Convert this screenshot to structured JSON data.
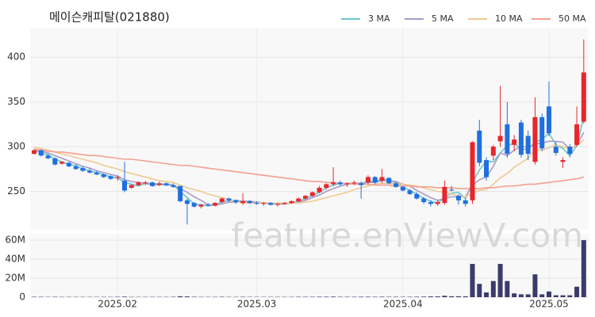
{
  "chart_data": [
    {
      "type": "candlestick",
      "title": "메이슨캐피탈(021880)",
      "watermark": "feature.enViewV.com",
      "categories": [
        null,
        null,
        null,
        null,
        null,
        null,
        null,
        null,
        null,
        null,
        null,
        null,
        "2025.02",
        null,
        null,
        null,
        null,
        null,
        null,
        null,
        null,
        null,
        null,
        null,
        null,
        null,
        null,
        null,
        null,
        null,
        null,
        null,
        "2025.03",
        null,
        null,
        null,
        null,
        null,
        null,
        null,
        null,
        null,
        null,
        null,
        null,
        null,
        null,
        null,
        null,
        null,
        null,
        null,
        null,
        "2025.04",
        null,
        null,
        null,
        null,
        null,
        null,
        null,
        null,
        null,
        null,
        null,
        null,
        null,
        null,
        null,
        null,
        null,
        null,
        null,
        null,
        "2025.05",
        null,
        null,
        null,
        null,
        null
      ],
      "open": [
        292,
        296,
        290,
        287,
        281,
        282,
        278,
        276,
        273,
        271,
        269,
        267,
        265,
        262,
        254,
        257,
        259,
        260,
        257,
        259,
        257,
        256,
        240,
        237,
        233,
        235,
        234,
        238,
        242,
        240,
        237,
        239,
        237,
        236,
        237,
        235,
        236,
        237,
        239,
        242,
        245,
        249,
        254,
        258,
        260,
        258,
        259,
        259,
        260,
        266,
        262,
        265,
        259,
        255,
        251,
        247,
        242,
        238,
        236,
        237,
        252,
        245,
        240,
        240,
        318,
        285,
        290,
        306,
        325,
        302,
        327,
        312,
        283,
        333,
        345,
        300,
        283,
        300,
        302,
        328
      ],
      "high": [
        297,
        297,
        292,
        288,
        284,
        283,
        280,
        278,
        276,
        273,
        270,
        268,
        268,
        283,
        258,
        261,
        262,
        261,
        261,
        260,
        259,
        256,
        242,
        238,
        236,
        237,
        238,
        243,
        243,
        241,
        248,
        240,
        239,
        238,
        238,
        237,
        238,
        240,
        243,
        246,
        250,
        256,
        259,
        277,
        262,
        260,
        262,
        261,
        268,
        267,
        275,
        266,
        260,
        256,
        253,
        249,
        244,
        240,
        240,
        262,
        256,
        247,
        242,
        306,
        330,
        288,
        302,
        368,
        350,
        313,
        330,
        318,
        355,
        337,
        373,
        305,
        288,
        303,
        345,
        420
      ],
      "low": [
        291,
        289,
        286,
        279,
        280,
        277,
        274,
        272,
        270,
        268,
        265,
        263,
        262,
        249,
        253,
        256,
        257,
        255,
        256,
        256,
        254,
        238,
        213,
        232,
        231,
        233,
        233,
        237,
        238,
        236,
        235,
        236,
        235,
        234,
        234,
        233,
        235,
        236,
        238,
        240,
        244,
        248,
        252,
        256,
        256,
        255,
        257,
        242,
        258,
        258,
        259,
        258,
        254,
        250,
        246,
        241,
        236,
        233,
        234,
        235,
        250,
        235,
        233,
        236,
        278,
        262,
        285,
        300,
        288,
        295,
        288,
        285,
        280,
        295,
        312,
        290,
        276,
        288,
        300,
        326
      ],
      "close": [
        296,
        290,
        287,
        280,
        283,
        278,
        275,
        273,
        271,
        269,
        266,
        264,
        266,
        251,
        257,
        260,
        260,
        256,
        259,
        257,
        255,
        239,
        236,
        233,
        235,
        234,
        237,
        242,
        240,
        238,
        239,
        237,
        236,
        237,
        235,
        236,
        237,
        239,
        242,
        245,
        249,
        254,
        258,
        260,
        258,
        259,
        260,
        257,
        266,
        260,
        266,
        259,
        255,
        251,
        247,
        242,
        238,
        236,
        238,
        255,
        251,
        240,
        236,
        305,
        282,
        266,
        300,
        312,
        292,
        308,
        291,
        292,
        333,
        298,
        315,
        293,
        285,
        292,
        325,
        383
      ],
      "up_color": "#e8262c",
      "down_color": "#1f6fe0",
      "series": [
        {
          "name": "3 MA",
          "color": "#6cc5c8",
          "values": [
            296,
            293,
            291,
            286,
            283,
            280,
            279,
            275,
            273,
            271,
            269,
            266,
            265,
            260,
            258,
            256,
            259,
            259,
            258,
            257,
            257,
            250,
            243,
            236,
            235,
            234,
            235,
            238,
            240,
            240,
            239,
            238,
            237,
            237,
            236,
            236,
            236,
            237,
            239,
            242,
            245,
            249,
            254,
            257,
            259,
            259,
            259,
            259,
            261,
            261,
            264,
            262,
            260,
            255,
            251,
            247,
            242,
            239,
            237,
            243,
            248,
            249,
            242,
            260,
            274,
            284,
            283,
            293,
            301,
            304,
            297,
            297,
            305,
            308,
            315,
            302,
            298,
            290,
            301,
            333
          ]
        },
        {
          "name": "5 MA",
          "color": "#a89cc8",
          "values": [
            297,
            295,
            293,
            290,
            287,
            284,
            281,
            278,
            276,
            273,
            271,
            269,
            267,
            263,
            261,
            260,
            259,
            257,
            258,
            258,
            257,
            253,
            249,
            244,
            240,
            235,
            235,
            236,
            238,
            238,
            239,
            239,
            238,
            237,
            237,
            236,
            236,
            237,
            238,
            240,
            243,
            246,
            250,
            253,
            256,
            258,
            259,
            259,
            260,
            260,
            262,
            262,
            261,
            258,
            256,
            251,
            247,
            243,
            240,
            242,
            244,
            244,
            244,
            257,
            263,
            266,
            278,
            293,
            290,
            296,
            301,
            299,
            303,
            304,
            306,
            306,
            305,
            297,
            302,
            316
          ]
        },
        {
          "name": "10 MA",
          "color": "#f0c890",
          "values": [
            299,
            298,
            296,
            294,
            292,
            290,
            288,
            286,
            284,
            282,
            279,
            277,
            275,
            272,
            270,
            268,
            266,
            264,
            262,
            261,
            260,
            257,
            254,
            252,
            250,
            247,
            245,
            243,
            241,
            239,
            237,
            237,
            237,
            237,
            237,
            237,
            237,
            237,
            237,
            238,
            239,
            241,
            243,
            245,
            247,
            249,
            252,
            254,
            256,
            258,
            259,
            259,
            259,
            258,
            257,
            256,
            254,
            252,
            250,
            249,
            247,
            245,
            244,
            248,
            251,
            252,
            258,
            265,
            270,
            277,
            282,
            287,
            297,
            296,
            299,
            302,
            300,
            298,
            301,
            308
          ]
        },
        {
          "name": "50 MA",
          "color": "#f4a090",
          "values": [
            297,
            296,
            295,
            294,
            294,
            293,
            292,
            291,
            290,
            290,
            289,
            288,
            287,
            286,
            286,
            285,
            284,
            283,
            282,
            281,
            280,
            279,
            279,
            278,
            277,
            276,
            275,
            274,
            273,
            272,
            271,
            270,
            269,
            268,
            267,
            266,
            265,
            264,
            263,
            262,
            261,
            261,
            260,
            260,
            259,
            259,
            258,
            258,
            258,
            257,
            257,
            257,
            256,
            256,
            256,
            255,
            255,
            255,
            254,
            254,
            254,
            253,
            253,
            253,
            253,
            254,
            254,
            255,
            256,
            256,
            257,
            258,
            258,
            259,
            260,
            261,
            262,
            263,
            264,
            266
          ]
        }
      ],
      "ylim": [
        207,
        433
      ],
      "yticks": [
        250,
        300,
        350,
        400
      ],
      "grid": true
    },
    {
      "type": "bar",
      "color": "#3b3b6b",
      "values": [
        0.4,
        0.4,
        0.3,
        0.4,
        0.3,
        0.3,
        0.3,
        0.3,
        0.3,
        0.3,
        0.3,
        0.3,
        0.4,
        0.6,
        0.3,
        0.3,
        0.3,
        0.3,
        0.3,
        0.3,
        0.4,
        1.0,
        0.8,
        0.4,
        0.3,
        0.3,
        0.3,
        0.4,
        0.3,
        0.3,
        0.4,
        0.3,
        0.3,
        0.3,
        0.3,
        0.3,
        0.3,
        0.3,
        0.4,
        0.4,
        0.4,
        0.5,
        0.5,
        0.6,
        0.4,
        0.4,
        0.4,
        0.5,
        0.5,
        0.4,
        0.5,
        0.4,
        0.4,
        0.4,
        0.4,
        0.5,
        0.6,
        0.8,
        0.8,
        1.5,
        1.0,
        1.0,
        0.9,
        35,
        14,
        5,
        17,
        35,
        17,
        4,
        3,
        3,
        24,
        3,
        6,
        2,
        2,
        2,
        11,
        60
      ],
      "ylim": [
        0,
        66.7
      ],
      "yticks": [
        0,
        {
          "value": 20,
          "label": "20M"
        },
        {
          "value": 40,
          "label": "40M"
        },
        {
          "value": 60,
          "label": "60M"
        }
      ]
    }
  ]
}
